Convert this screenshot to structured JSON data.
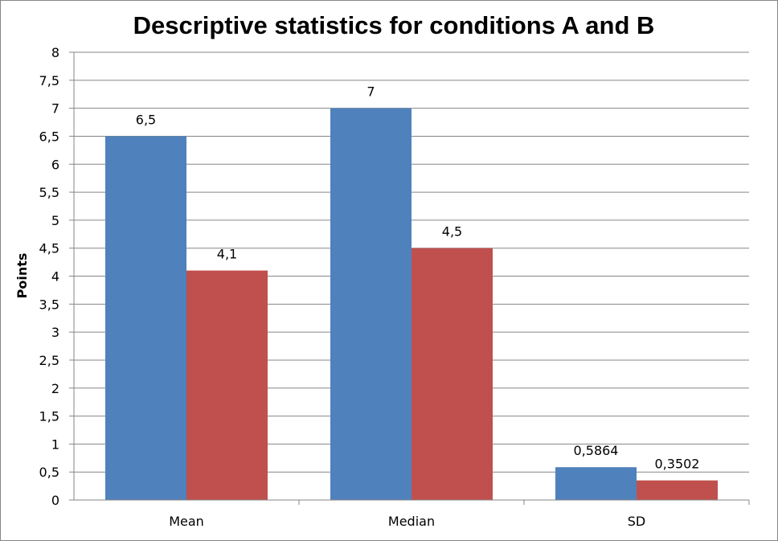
{
  "chart_data": {
    "type": "bar",
    "title": "Descriptive statistics for conditions A and B",
    "xlabel": "",
    "ylabel": "Points",
    "ylim": [
      0,
      8
    ],
    "ytick_step": 0.5,
    "ytick_labels": [
      "0",
      "0,5",
      "1",
      "1,5",
      "2",
      "2,5",
      "3",
      "3,5",
      "4",
      "4,5",
      "5",
      "5,5",
      "6",
      "6,5",
      "7",
      "7,5",
      "8"
    ],
    "categories": [
      "Mean",
      "Median",
      "SD"
    ],
    "grid": true,
    "legend": "none",
    "series": [
      {
        "values": [
          6.5,
          7,
          0.5864
        ],
        "labels": [
          "6,5",
          "7",
          "0,5864"
        ],
        "color": "#4f81bd"
      },
      {
        "values": [
          4.1,
          4.5,
          0.3502
        ],
        "labels": [
          "4,1",
          "4,5",
          "0,3502"
        ],
        "color": "#c0504d"
      }
    ]
  }
}
